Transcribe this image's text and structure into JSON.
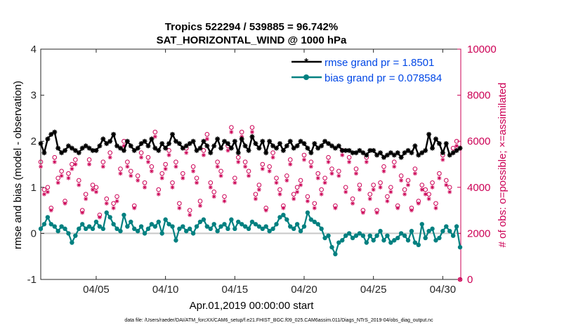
{
  "chart_data": {
    "type": "line",
    "title_line1": "Tropics 522294 / 539885 = 96.742%",
    "title_line2": "SAT_HORIZONTAL_WIND @ 1000 hPa",
    "xlabel": "Apr.01,2019 00:00:00 start",
    "ylabel_left": "rmse and bias (model - observation)",
    "ylabel_right": "# of obs: o=possible; ×=assimilated",
    "xlim": [
      1,
      31.3
    ],
    "ylim_left": [
      -1,
      4
    ],
    "ylim_right": [
      0,
      10000
    ],
    "x_ticks": [
      5,
      10,
      15,
      20,
      25,
      30
    ],
    "x_tick_labels": [
      "04/05",
      "04/10",
      "04/15",
      "04/20",
      "04/25",
      "04/30"
    ],
    "y_ticks_left": [
      -1,
      0,
      1,
      2,
      3,
      4
    ],
    "y_tick_labels_left": [
      "-1",
      "0",
      "1",
      "2",
      "3",
      "4"
    ],
    "y_ticks_right": [
      0,
      2000,
      4000,
      6000,
      8000,
      10000
    ],
    "y_tick_labels_right": [
      "0",
      "2000",
      "4000",
      "6000",
      "8000",
      "10000"
    ],
    "legend_position": "top-right",
    "footnote": "data file: /Users/raeder/DAI/ATM_forcXX/CAM6_setup/f.e21.FHIST_BGC.f09_025.CAM6assim.011/Diags_NTrS_2019-04/obs_diag_output.nc",
    "colors": {
      "rmse": "#000000",
      "bias": "#008080",
      "obs": "#cc0055",
      "legend_text": "#0047e6",
      "zero_line": "#c8c8c8"
    },
    "series": [
      {
        "name": "rmse grand pr = 1.8501",
        "axis": "left",
        "x": [
          1.0,
          1.25,
          1.5,
          1.75,
          2.0,
          2.25,
          2.5,
          2.75,
          3.0,
          3.25,
          3.5,
          3.75,
          4.0,
          4.25,
          4.5,
          4.75,
          5.0,
          5.25,
          5.5,
          5.75,
          6.0,
          6.25,
          6.5,
          6.75,
          7.0,
          7.25,
          7.5,
          7.75,
          8.0,
          8.25,
          8.5,
          8.75,
          9.0,
          9.25,
          9.5,
          9.75,
          10.0,
          10.25,
          10.5,
          10.75,
          11.0,
          11.25,
          11.5,
          11.75,
          12.0,
          12.25,
          12.5,
          12.75,
          13.0,
          13.25,
          13.5,
          13.75,
          14.0,
          14.25,
          14.5,
          14.75,
          15.0,
          15.25,
          15.5,
          15.75,
          16.0,
          16.25,
          16.5,
          16.75,
          17.0,
          17.25,
          17.5,
          17.75,
          18.0,
          18.25,
          18.5,
          18.75,
          19.0,
          19.25,
          19.5,
          19.75,
          20.0,
          20.25,
          20.5,
          20.75,
          21.0,
          21.25,
          21.5,
          21.75,
          22.0,
          22.25,
          22.5,
          22.75,
          23.0,
          23.25,
          23.5,
          23.75,
          24.0,
          24.25,
          24.5,
          24.75,
          25.0,
          25.25,
          25.5,
          25.75,
          26.0,
          26.25,
          26.5,
          26.75,
          27.0,
          27.25,
          27.5,
          27.75,
          28.0,
          28.25,
          28.5,
          28.75,
          29.0,
          29.25,
          29.5,
          29.75,
          30.0,
          30.25,
          30.5,
          30.75,
          31.0,
          31.25
        ],
        "values": [
          1.95,
          1.75,
          2.05,
          2.15,
          2.2,
          1.85,
          1.75,
          1.8,
          1.9,
          1.85,
          1.8,
          1.75,
          1.85,
          1.9,
          1.85,
          1.8,
          1.8,
          1.9,
          2.05,
          1.95,
          2.0,
          2.15,
          1.9,
          1.85,
          1.8,
          2.0,
          1.9,
          1.8,
          1.85,
          1.95,
          2.0,
          1.9,
          2.05,
          1.85,
          1.8,
          1.95,
          1.85,
          1.95,
          2.15,
          2.0,
          1.95,
          1.85,
          1.9,
          1.95,
          2.0,
          1.8,
          1.85,
          2.0,
          1.9,
          1.75,
          1.9,
          2.05,
          1.85,
          2.0,
          1.95,
          1.85,
          2.0,
          1.75,
          2.05,
          1.9,
          1.8,
          2.1,
          1.95,
          1.85,
          2.0,
          1.75,
          2.0,
          1.9,
          1.85,
          1.95,
          1.8,
          1.9,
          2.0,
          1.85,
          1.9,
          2.0,
          1.95,
          1.85,
          1.75,
          1.95,
          1.85,
          1.9,
          2.0,
          1.95,
          1.9,
          1.85,
          1.9,
          1.8,
          1.8,
          1.8,
          1.75,
          1.75,
          1.8,
          1.75,
          1.7,
          1.8,
          1.8,
          1.7,
          1.75,
          1.65,
          1.7,
          1.75,
          1.7,
          1.75,
          1.65,
          1.75,
          1.8,
          1.75,
          1.9,
          1.7,
          1.75,
          1.8,
          2.15,
          1.85,
          2.05,
          1.95,
          1.75,
          1.95,
          1.7,
          1.75,
          1.8,
          1.85
        ],
        "marker": "*"
      },
      {
        "name": "bias grand pr = 0.078584",
        "axis": "left",
        "x": [
          1.0,
          1.25,
          1.5,
          1.75,
          2.0,
          2.25,
          2.5,
          2.75,
          3.0,
          3.25,
          3.5,
          3.75,
          4.0,
          4.25,
          4.5,
          4.75,
          5.0,
          5.25,
          5.5,
          5.75,
          6.0,
          6.25,
          6.5,
          6.75,
          7.0,
          7.25,
          7.5,
          7.75,
          8.0,
          8.25,
          8.5,
          8.75,
          9.0,
          9.25,
          9.5,
          9.75,
          10.0,
          10.25,
          10.5,
          10.75,
          11.0,
          11.25,
          11.5,
          11.75,
          12.0,
          12.25,
          12.5,
          12.75,
          13.0,
          13.25,
          13.5,
          13.75,
          14.0,
          14.25,
          14.5,
          14.75,
          15.0,
          15.25,
          15.5,
          15.75,
          16.0,
          16.25,
          16.5,
          16.75,
          17.0,
          17.25,
          17.5,
          17.75,
          18.0,
          18.25,
          18.5,
          18.75,
          19.0,
          19.25,
          19.5,
          19.75,
          20.0,
          20.25,
          20.5,
          20.75,
          21.0,
          21.25,
          21.5,
          21.75,
          22.0,
          22.25,
          22.5,
          22.75,
          23.0,
          23.25,
          23.5,
          23.75,
          24.0,
          24.25,
          24.5,
          24.75,
          25.0,
          25.25,
          25.5,
          25.75,
          26.0,
          26.25,
          26.5,
          26.75,
          27.0,
          27.25,
          27.5,
          27.75,
          28.0,
          28.25,
          28.5,
          28.75,
          29.0,
          29.25,
          29.5,
          29.75,
          30.0,
          30.25,
          30.5,
          30.75,
          31.0,
          31.25
        ],
        "values": [
          0.1,
          0.2,
          0.35,
          0.2,
          0.15,
          0.05,
          0.15,
          0.1,
          0.0,
          -0.2,
          -0.05,
          0.1,
          0.2,
          0.1,
          0.15,
          0.1,
          0.25,
          0.15,
          0.1,
          0.45,
          0.35,
          0.2,
          0.1,
          0.05,
          0.4,
          0.15,
          0.25,
          0.1,
          0.05,
          0.15,
          0.0,
          0.1,
          0.2,
          0.15,
          0.25,
          0.0,
          0.3,
          0.2,
          0.15,
          -0.15,
          0.1,
          0.15,
          0.05,
          0.1,
          0.0,
          0.15,
          0.25,
          0.3,
          0.15,
          0.1,
          0.2,
          0.05,
          0.15,
          0.2,
          0.1,
          0.3,
          0.1,
          0.25,
          0.2,
          0.15,
          0.1,
          0.25,
          0.2,
          0.15,
          0.1,
          0.15,
          0.05,
          0.1,
          0.2,
          0.35,
          0.4,
          0.3,
          0.15,
          0.1,
          0.2,
          0.05,
          0.15,
          0.45,
          0.3,
          0.25,
          0.2,
          0.1,
          -0.1,
          -0.05,
          -0.3,
          -0.45,
          -0.2,
          -0.15,
          -0.05,
          0.0,
          -0.1,
          -0.05,
          0.0,
          -0.05,
          -0.2,
          -0.05,
          -0.15,
          -0.05,
          0.05,
          -0.15,
          -0.05,
          -0.2,
          -0.15,
          -0.1,
          0.0,
          -0.05,
          -0.15,
          0.05,
          -0.2,
          -0.25,
          0.2,
          -0.1,
          0.05,
          0.1,
          -0.15,
          -0.1,
          0.05,
          0.15,
          0.05,
          -0.05,
          0.15,
          -0.3
        ],
        "marker": "o"
      },
      {
        "name": "obs possible",
        "axis": "right",
        "x": [
          1.0,
          1.25,
          1.5,
          1.75,
          2.0,
          2.25,
          2.5,
          2.75,
          3.0,
          3.25,
          3.5,
          3.75,
          4.0,
          4.25,
          4.5,
          4.75,
          5.0,
          5.25,
          5.5,
          5.75,
          6.0,
          6.25,
          6.5,
          6.75,
          7.0,
          7.25,
          7.5,
          7.75,
          8.0,
          8.25,
          8.5,
          8.75,
          9.0,
          9.25,
          9.5,
          9.75,
          10.0,
          10.25,
          10.5,
          10.75,
          11.0,
          11.25,
          11.5,
          11.75,
          12.0,
          12.25,
          12.5,
          12.75,
          13.0,
          13.25,
          13.5,
          13.75,
          14.0,
          14.25,
          14.5,
          14.75,
          15.0,
          15.25,
          15.5,
          15.75,
          16.0,
          16.25,
          16.5,
          16.75,
          17.0,
          17.25,
          17.5,
          17.75,
          18.0,
          18.25,
          18.5,
          18.75,
          19.0,
          19.25,
          19.5,
          19.75,
          20.0,
          20.25,
          20.5,
          20.75,
          21.0,
          21.25,
          21.5,
          21.75,
          22.0,
          22.25,
          22.5,
          22.75,
          23.0,
          23.25,
          23.5,
          23.75,
          24.0,
          24.25,
          24.5,
          24.75,
          25.0,
          25.25,
          25.5,
          25.75,
          26.0,
          26.25,
          26.5,
          26.75,
          27.0,
          27.25,
          27.5,
          27.75,
          28.0,
          28.25,
          28.5,
          28.75,
          29.0,
          29.25,
          29.5,
          29.75,
          30.0,
          30.25,
          30.5,
          30.75,
          31.0,
          31.25
        ],
        "values": [
          5100,
          3900,
          4000,
          3100,
          5300,
          4400,
          4700,
          3400,
          4600,
          5000,
          5200,
          4300,
          3000,
          3700,
          5200,
          4100,
          4000,
          2800,
          5100,
          3500,
          5500,
          3300,
          3600,
          4800,
          6000,
          5100,
          4700,
          3200,
          4500,
          5500,
          4200,
          5300,
          4900,
          6400,
          3900,
          4600,
          5000,
          5600,
          4200,
          5100,
          3300,
          4600,
          5700,
          3000,
          4900,
          4400,
          3400,
          5600,
          6300,
          4200,
          3800,
          5100,
          4700,
          3600,
          5800,
          6600,
          4400,
          5300,
          6400,
          5100,
          4700,
          6600,
          3700,
          4100,
          5000,
          3100,
          4900,
          5500,
          4400,
          3900,
          3200,
          4500,
          5200,
          3700,
          4000,
          4300,
          5400,
          3600,
          5100,
          3300,
          4600,
          3900,
          4400,
          5300,
          4800,
          3200,
          4700,
          5600,
          4000,
          5300,
          3500,
          4800,
          4100,
          3000,
          5300,
          3700,
          4100,
          3000,
          4200,
          4900,
          3600,
          4000,
          5100,
          3200,
          4500,
          3900,
          4300,
          3100,
          4800,
          3400,
          4100,
          3900,
          3700,
          4200,
          3300,
          4600,
          5400,
          4300,
          4000,
          5700,
          6000,
          0
        ]
      },
      {
        "name": "obs assimilated",
        "axis": "right",
        "x": [
          1.0,
          1.25,
          1.5,
          1.75,
          2.0,
          2.25,
          2.5,
          2.75,
          3.0,
          3.25,
          3.5,
          3.75,
          4.0,
          4.25,
          4.5,
          4.75,
          5.0,
          5.25,
          5.5,
          5.75,
          6.0,
          6.25,
          6.5,
          6.75,
          7.0,
          7.25,
          7.5,
          7.75,
          8.0,
          8.25,
          8.5,
          8.75,
          9.0,
          9.25,
          9.5,
          9.75,
          10.0,
          10.25,
          10.5,
          10.75,
          11.0,
          11.25,
          11.5,
          11.75,
          12.0,
          12.25,
          12.5,
          12.75,
          13.0,
          13.25,
          13.5,
          13.75,
          14.0,
          14.25,
          14.5,
          14.75,
          15.0,
          15.25,
          15.5,
          15.75,
          16.0,
          16.25,
          16.5,
          16.75,
          17.0,
          17.25,
          17.5,
          17.75,
          18.0,
          18.25,
          18.5,
          18.75,
          19.0,
          19.25,
          19.5,
          19.75,
          20.0,
          20.25,
          20.5,
          20.75,
          21.0,
          21.25,
          21.5,
          21.75,
          22.0,
          22.25,
          22.5,
          22.75,
          23.0,
          23.25,
          23.5,
          23.75,
          24.0,
          24.25,
          24.5,
          24.75,
          25.0,
          25.25,
          25.5,
          25.75,
          26.0,
          26.25,
          26.5,
          26.75,
          27.0,
          27.25,
          27.5,
          27.75,
          28.0,
          28.25,
          28.5,
          28.75,
          29.0,
          29.25,
          29.5,
          29.75,
          30.0,
          30.25,
          30.5,
          30.75,
          31.0,
          31.25
        ],
        "values": [
          4900,
          3700,
          3800,
          3000,
          5100,
          4200,
          4500,
          3300,
          4400,
          4800,
          5000,
          4100,
          2900,
          3500,
          5000,
          3900,
          3800,
          2700,
          4900,
          3300,
          5300,
          3100,
          3400,
          4600,
          5800,
          4900,
          4500,
          3100,
          4300,
          5300,
          4000,
          5100,
          4700,
          6200,
          3700,
          4400,
          4800,
          5400,
          4000,
          4900,
          3100,
          4400,
          5500,
          2800,
          4700,
          4200,
          3200,
          5400,
          6100,
          4000,
          3600,
          4900,
          4500,
          3400,
          5600,
          6400,
          4200,
          5100,
          6200,
          4900,
          4500,
          6400,
          3500,
          3900,
          4800,
          3000,
          4700,
          5300,
          4200,
          3700,
          3100,
          4300,
          5000,
          3500,
          3800,
          4100,
          5200,
          3400,
          4900,
          3100,
          4400,
          3700,
          4200,
          5100,
          4600,
          3100,
          4500,
          5400,
          3800,
          5100,
          3300,
          4600,
          3900,
          2900,
          5100,
          3500,
          3900,
          2900,
          4000,
          4700,
          3400,
          3800,
          4900,
          3100,
          4300,
          3700,
          4100,
          3000,
          4600,
          3300,
          3900,
          3700,
          3500,
          4000,
          3100,
          4400,
          5200,
          4100,
          3800,
          5500,
          5800,
          0
        ]
      }
    ]
  }
}
